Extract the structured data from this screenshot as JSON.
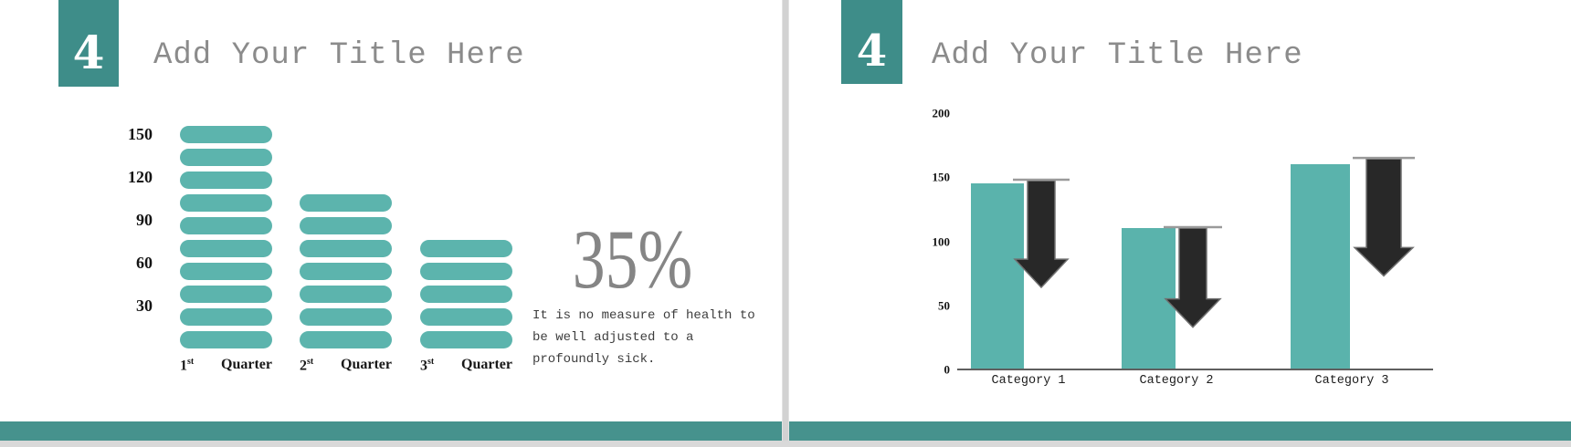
{
  "slides": [
    {
      "number": "4",
      "title": "Add Your Title Here",
      "stat": "35%",
      "quote_lines": [
        "It is no measure of health to",
        "be well adjusted to a",
        "profoundly sick."
      ]
    },
    {
      "number": "4",
      "title": "Add Your Title Here"
    }
  ],
  "chart_data": [
    {
      "type": "bar",
      "variant": "segmented-pill-columns",
      "title": "",
      "categories": [
        {
          "num": "1",
          "sup": "st",
          "word": "Quarter"
        },
        {
          "num": "2",
          "sup": "st",
          "word": "Quarter"
        },
        {
          "num": "3",
          "sup": "st",
          "word": "Quarter"
        }
      ],
      "values": [
        160,
        111,
        79
      ],
      "segment_counts": [
        10,
        7,
        5
      ],
      "y_ticks": [
        150,
        120,
        90,
        60,
        30
      ],
      "ylim": [
        0,
        165
      ],
      "grid": false,
      "axis_lines": false,
      "bar_color": "#5cb4ad"
    },
    {
      "type": "bar",
      "title": "",
      "categories": [
        "Category 1",
        "Category 2",
        "Category 3"
      ],
      "series": [
        {
          "name": "value-bars",
          "type": "bar",
          "color": "#5ab3ac",
          "values": [
            145,
            110,
            160
          ]
        },
        {
          "name": "decrease-arrows",
          "type": "arrow-down",
          "color": "#282828",
          "from": [
            148,
            111,
            165
          ],
          "to": [
            64,
            33,
            73
          ]
        }
      ],
      "y_ticks": [
        200,
        150,
        100,
        50,
        0
      ],
      "ylim": [
        0,
        200
      ],
      "grid": false,
      "axis_lines": "x-only"
    }
  ],
  "colors": {
    "accent_teal": "#46928d",
    "number_box_teal": "#3e8d89",
    "pill_teal": "#5cb4ad",
    "bar_teal": "#5ab3ac",
    "title_gray": "#8b8b8b",
    "stat_gray": "#858585",
    "quote_gray": "#3d3d3d",
    "arrow_dark": "#282828",
    "arrow_cap_gray": "#9a9a9a",
    "baseline_gray": "#5f5f5f",
    "divider_gray": "#d2d2d2"
  }
}
